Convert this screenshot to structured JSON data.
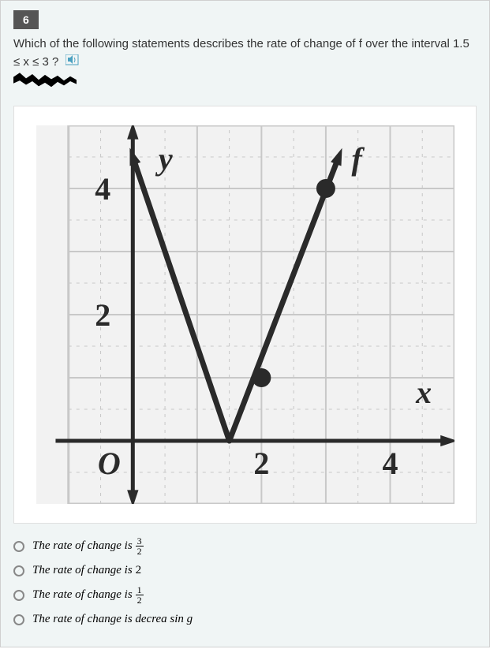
{
  "question": {
    "number": "6",
    "text": "Which of the following statements describes the rate of change of f over the interval 1.5 ≤ x ≤ 3 ?",
    "tts_icon": "speaker-icon"
  },
  "graph": {
    "type": "line",
    "background_color": "#f2f2f2",
    "grid_color": "#c8c8c8",
    "axis_color": "#2a2a2a",
    "line_color": "#2a2a2a",
    "point_fill": "#2a2a2a",
    "xlim": [
      -1.5,
      5
    ],
    "ylim": [
      -1,
      5
    ],
    "x_ticks": [
      2,
      4
    ],
    "y_ticks": [
      2,
      4
    ],
    "x_tick_labels": [
      "2",
      "4"
    ],
    "y_tick_labels": [
      "2",
      "4"
    ],
    "origin_label": "O",
    "x_axis_label": "x",
    "y_axis_label": "y",
    "function_label": "f",
    "axis_line_width": 5,
    "grid_line_width": 2,
    "data_line_width": 7,
    "point_radius": 12,
    "label_fontsize": 40,
    "tick_fontsize": 40,
    "label_font_family": "Times New Roman, serif",
    "label_font_style": "italic",
    "segments": [
      {
        "from": [
          0,
          4.5
        ],
        "to": [
          1.5,
          0
        ]
      },
      {
        "from": [
          1.5,
          0
        ],
        "to": [
          3.2,
          4.5
        ]
      }
    ],
    "points": [
      {
        "x": 2,
        "y": 1
      },
      {
        "x": 3,
        "y": 4
      }
    ],
    "arrows": {
      "x_axis_end": [
        5,
        0
      ],
      "y_axis_top": [
        0,
        5
      ],
      "y_axis_bottom": [
        0,
        -1
      ],
      "line_top_left": [
        0,
        4.5
      ],
      "line_top_right": [
        3.2,
        4.5
      ]
    }
  },
  "options": [
    {
      "prefix": "The rate of change is",
      "frac_num": "3",
      "frac_den": "2",
      "value_plain": null
    },
    {
      "prefix": "The rate of change is",
      "frac_num": null,
      "frac_den": null,
      "value_plain": "2"
    },
    {
      "prefix": "The rate of change is",
      "frac_num": "1",
      "frac_den": "2",
      "value_plain": null
    },
    {
      "prefix": "The rate of change is decrea sin g",
      "frac_num": null,
      "frac_den": null,
      "value_plain": null
    }
  ],
  "colors": {
    "page_bg": "#f0f5f5",
    "panel_bg": "#ffffff",
    "badge_bg": "#555555",
    "badge_fg": "#ffffff",
    "text": "#333333",
    "option_text": "#000000",
    "radio_border": "#888888"
  }
}
